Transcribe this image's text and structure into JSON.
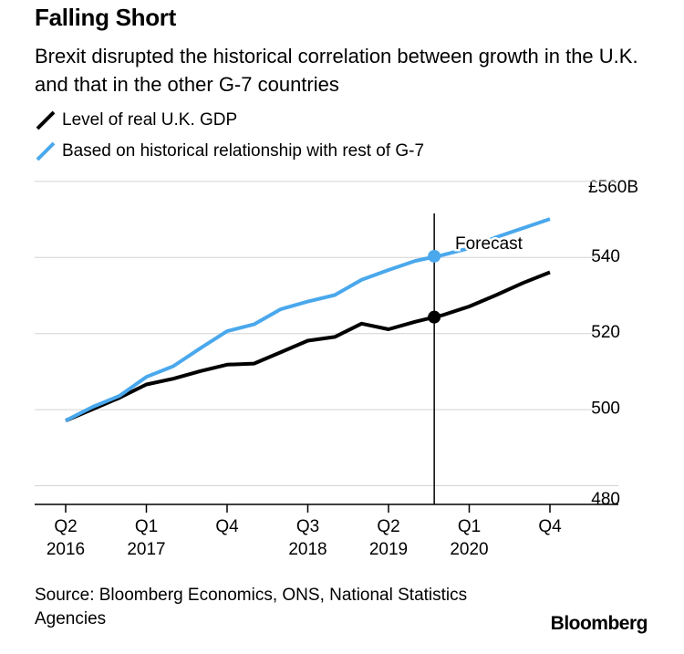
{
  "header": {
    "title": "Falling Short",
    "subtitle": "Brexit disrupted the historical correlation between growth in the U.K. and that in the other G-7 countries"
  },
  "footer": {
    "source": "Source: Bloomberg Economics, ONS, National Statistics Agencies",
    "brand": "Bloomberg"
  },
  "chart_data": {
    "type": "line",
    "title": "Falling Short",
    "subtitle": "Brexit disrupted the historical correlation between growth in the U.K. and that in the other G-7 countries",
    "xlabel": "",
    "ylabel": "",
    "unit_label": "£560B",
    "ylim": [
      475,
      565
    ],
    "yticks": [
      {
        "value": 540,
        "label": "540"
      },
      {
        "value": 520,
        "label": "520"
      },
      {
        "value": 500,
        "label": "500"
      },
      {
        "value": 480,
        "label": "480"
      }
    ],
    "x": [
      "2016 Q2",
      "2016 Q3",
      "2016 Q4",
      "2017 Q1",
      "2017 Q2",
      "2017 Q3",
      "2017 Q4",
      "2018 Q1",
      "2018 Q2",
      "2018 Q3",
      "2018 Q4",
      "2019 Q1",
      "2019 Q2",
      "2019 Q3",
      "2019 Q4",
      "2020 Q1",
      "2020 Q2",
      "2020 Q3",
      "2020 Q4"
    ],
    "xtick_labels": [
      {
        "index": 0,
        "quarter": "Q2",
        "year": "2016"
      },
      {
        "index": 3,
        "quarter": "Q1",
        "year": "2017"
      },
      {
        "index": 6,
        "quarter": "Q4",
        "year": ""
      },
      {
        "index": 9,
        "quarter": "Q3",
        "year": "2018"
      },
      {
        "index": 12,
        "quarter": "Q2",
        "year": "2019"
      },
      {
        "index": 15,
        "quarter": "Q1",
        "year": "2020"
      },
      {
        "index": 18,
        "quarter": "Q4",
        "year": ""
      }
    ],
    "forecast_label": "Forecast",
    "forecast_start_index": 13.7,
    "series": [
      {
        "name": "Level of real U.K. GDP",
        "color": "#000000",
        "values": [
          497,
          500,
          503,
          506.5,
          508,
          510,
          511.7,
          512,
          515,
          518,
          519,
          522.5,
          521,
          523,
          524.7,
          527,
          530,
          533.2,
          536
        ],
        "marker_index": 13.7,
        "marker_value": 524.2
      },
      {
        "name": "Based on historical relationship with rest of G-7",
        "color": "#4aa8ec",
        "values": [
          497,
          500.6,
          503.5,
          508.5,
          511.3,
          516,
          520.5,
          522.3,
          526.3,
          528.3,
          530,
          534,
          536.6,
          539,
          540.5,
          542.3,
          545.2,
          547.6,
          550
        ],
        "marker_index": 13.7,
        "marker_value": 540.2
      }
    ],
    "grid": true,
    "legend_position": "top-left",
    "markers": {
      "enabled": true,
      "at": "forecast start"
    }
  }
}
